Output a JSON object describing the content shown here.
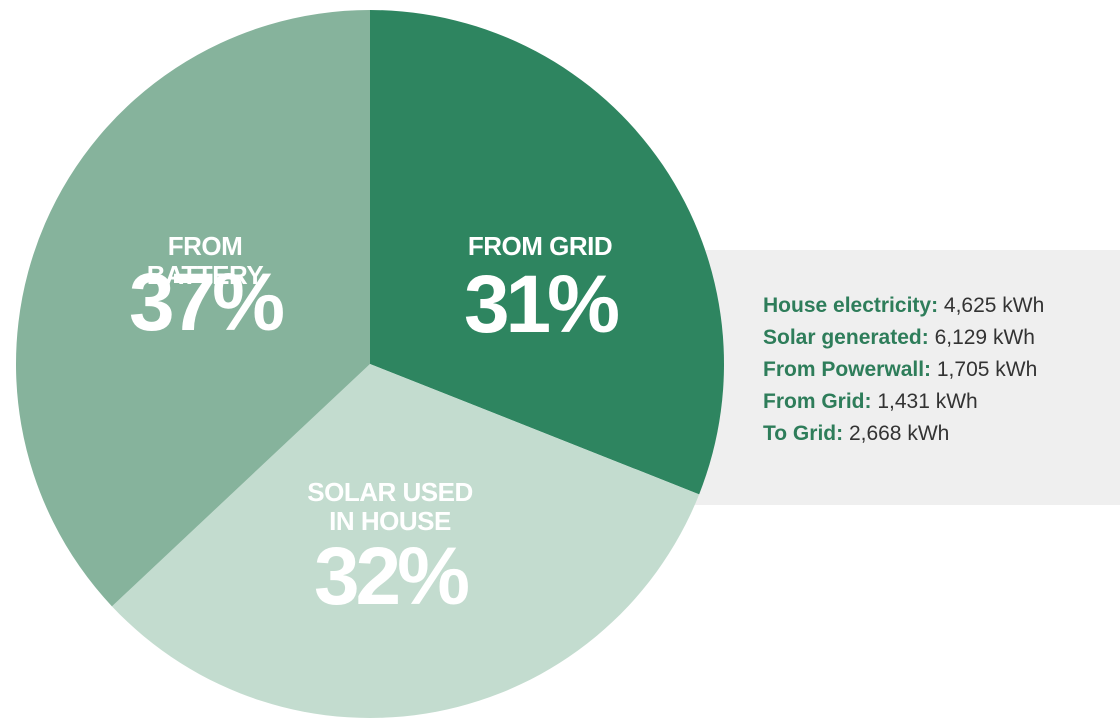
{
  "chart_data": {
    "type": "pie",
    "categories": [
      "FROM GRID",
      "SOLAR USED IN HOUSE",
      "FROM BATTERY"
    ],
    "values": [
      31,
      32,
      37
    ],
    "value_labels": [
      "31%",
      "32%",
      "37%"
    ],
    "colors": [
      "#2e8560",
      "#c3dccf",
      "#86b39c"
    ],
    "stats": [
      {
        "label": "House electricity:",
        "value": "4,625 kWh"
      },
      {
        "label": "Solar generated:",
        "value": "6,129 kWh"
      },
      {
        "label": "From Powerwall:",
        "value": "1,705 kWh"
      },
      {
        "label": "From Grid:",
        "value": "1,431 kWh"
      },
      {
        "label": "To Grid:",
        "value": "2,668 kWh"
      }
    ]
  }
}
